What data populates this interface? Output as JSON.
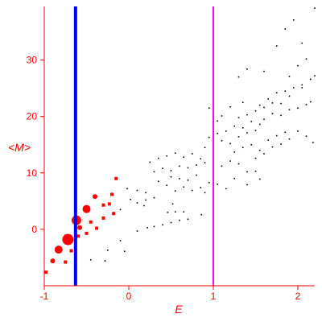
{
  "chart_data": {
    "type": "scatter",
    "xlabel": "E",
    "ylabel": "<M>",
    "xlim": [
      -1,
      2.2
    ],
    "ylim": [
      -10,
      39.5
    ],
    "x_ticks": [
      -1,
      0,
      1,
      2
    ],
    "y_ticks": [
      0,
      10,
      20,
      30
    ],
    "grid": false,
    "colors": {
      "axes": "#ff0000",
      "points": "#000000",
      "highlight": "#ff0000",
      "line_blue": "#0000ff",
      "line_magenta": "#ff00ff"
    },
    "vertical_lines": [
      {
        "x": -0.63,
        "color": "#0000ff"
      },
      {
        "x": 1.0,
        "color": "#ff00ff"
      }
    ],
    "series": [
      {
        "color": "#000000",
        "points": [
          [
            -0.45,
            -5.4
          ],
          [
            -0.28,
            -5.6
          ],
          [
            -0.05,
            -3.9
          ],
          [
            -0.25,
            -3.7
          ],
          [
            -0.1,
            -2.0
          ],
          [
            0.1,
            -0.3
          ],
          [
            0.22,
            0.3
          ],
          [
            0.3,
            0.5
          ],
          [
            0.4,
            0.8
          ],
          [
            0.5,
            1.2
          ],
          [
            0.6,
            1.6
          ],
          [
            0.7,
            1.8
          ],
          [
            0.86,
            2.6
          ],
          [
            0.46,
            3.0
          ],
          [
            0.55,
            3.1
          ],
          [
            0.65,
            3.1
          ],
          [
            0.52,
            4.5
          ],
          [
            0.18,
            4.2
          ],
          [
            -0.1,
            3.5
          ],
          [
            -0.02,
            7.2
          ],
          [
            0.1,
            6.9
          ],
          [
            0.2,
            6.5
          ],
          [
            0.3,
            5.6
          ],
          [
            0.2,
            5.2
          ],
          [
            0.1,
            4.7
          ],
          [
            0.02,
            5.3
          ],
          [
            0.35,
            8.5
          ],
          [
            0.45,
            7.8
          ],
          [
            0.55,
            6.8
          ],
          [
            0.65,
            7.5
          ],
          [
            0.75,
            6.9
          ],
          [
            0.85,
            7.4
          ],
          [
            0.9,
            6.5
          ],
          [
            0.3,
            10.2
          ],
          [
            0.4,
            10.8
          ],
          [
            0.5,
            10.4
          ],
          [
            0.6,
            11.2
          ],
          [
            0.7,
            10.9
          ],
          [
            0.8,
            11.4
          ],
          [
            0.9,
            11.8
          ],
          [
            0.25,
            11.9
          ],
          [
            0.35,
            12.6
          ],
          [
            0.45,
            13.0
          ],
          [
            0.55,
            13.5
          ],
          [
            0.65,
            12.8
          ],
          [
            0.75,
            13.4
          ],
          [
            0.85,
            12.5
          ],
          [
            0.5,
            9.3
          ],
          [
            0.6,
            9.0
          ],
          [
            0.7,
            8.7
          ],
          [
            0.8,
            9.6
          ],
          [
            0.95,
            8.3
          ],
          [
            1.05,
            8.0
          ],
          [
            1.15,
            7.2
          ],
          [
            0.9,
            14.5
          ],
          [
            1.0,
            15.0
          ],
          [
            1.1,
            15.7
          ],
          [
            1.2,
            15.2
          ],
          [
            1.3,
            16.4
          ],
          [
            1.4,
            17.1
          ],
          [
            1.5,
            17.5
          ],
          [
            0.95,
            16.3
          ],
          [
            1.05,
            17.0
          ],
          [
            1.15,
            17.4
          ],
          [
            1.25,
            18.3
          ],
          [
            1.35,
            18.0
          ],
          [
            1.45,
            19.1
          ],
          [
            1.55,
            18.6
          ],
          [
            1.0,
            12.6
          ],
          [
            1.1,
            11.2
          ],
          [
            1.2,
            12.1
          ],
          [
            1.3,
            11.6
          ],
          [
            1.4,
            10.2
          ],
          [
            1.5,
            12.6
          ],
          [
            1.6,
            13.4
          ],
          [
            1.25,
            13.7
          ],
          [
            1.35,
            14.5
          ],
          [
            1.45,
            15.0
          ],
          [
            1.55,
            14.0
          ],
          [
            1.65,
            15.8
          ],
          [
            1.75,
            16.6
          ],
          [
            1.85,
            17.2
          ],
          [
            1.6,
            19.5
          ],
          [
            1.7,
            20.5
          ],
          [
            1.8,
            20.2
          ],
          [
            1.9,
            21.2
          ],
          [
            2.0,
            21.5
          ],
          [
            2.1,
            22.1
          ],
          [
            2.15,
            22.6
          ],
          [
            1.3,
            19.8
          ],
          [
            1.4,
            20.3
          ],
          [
            1.5,
            21.0
          ],
          [
            1.6,
            21.6
          ],
          [
            1.7,
            22.4
          ],
          [
            1.8,
            22.3
          ],
          [
            1.9,
            23.6
          ],
          [
            1.55,
            22.0
          ],
          [
            1.65,
            23.1
          ],
          [
            1.75,
            24.2
          ],
          [
            1.85,
            24.5
          ],
          [
            1.95,
            25.1
          ],
          [
            2.05,
            25.6
          ],
          [
            2.15,
            26.6
          ],
          [
            1.2,
            21.7
          ],
          [
            1.35,
            22.5
          ],
          [
            1.1,
            20.1
          ],
          [
            1.05,
            19.2
          ],
          [
            2.0,
            17.4
          ],
          [
            2.1,
            16.5
          ],
          [
            2.18,
            15.4
          ],
          [
            1.7,
            14.6
          ],
          [
            1.8,
            15.1
          ],
          [
            1.9,
            16.0
          ],
          [
            1.5,
            10.3
          ],
          [
            1.55,
            8.9
          ],
          [
            1.25,
            9.0
          ],
          [
            1.4,
            7.9
          ],
          [
            1.4,
            28.4
          ],
          [
            1.6,
            28.0
          ],
          [
            1.75,
            32.5
          ],
          [
            1.85,
            35.5
          ],
          [
            1.95,
            37.1
          ],
          [
            2.05,
            33.0
          ],
          [
            2.2,
            39.2
          ],
          [
            2.0,
            29.0
          ],
          [
            2.1,
            30.2
          ],
          [
            2.2,
            27.2
          ],
          [
            1.3,
            27.0
          ],
          [
            1.9,
            27.1
          ],
          [
            2.05,
            25.1
          ],
          [
            0.95,
            21.5
          ]
        ]
      },
      {
        "color": "#ff0000",
        "points": [
          [
            -0.72,
            -1.8,
            7
          ],
          [
            -0.83,
            -3.6,
            5
          ],
          [
            -0.62,
            1.6,
            6
          ],
          [
            -0.5,
            3.6,
            5
          ],
          [
            -0.9,
            -5.6,
            3
          ],
          [
            -0.98,
            -7.6,
            2
          ],
          [
            -0.58,
            0.3,
            3
          ],
          [
            -0.4,
            5.8,
            3
          ],
          [
            -0.3,
            4.3,
            2
          ],
          [
            -0.2,
            6.2,
            2
          ],
          [
            -0.18,
            2.8,
            2
          ],
          [
            -0.3,
            2.0,
            2
          ],
          [
            -0.45,
            1.3,
            2
          ],
          [
            -0.6,
            -1.2,
            2
          ],
          [
            -0.75,
            -5.8,
            2
          ],
          [
            -0.68,
            -3.8,
            2
          ],
          [
            -0.5,
            -0.7,
            2
          ],
          [
            -0.38,
            0.2,
            2
          ],
          [
            -0.23,
            4.5,
            2
          ],
          [
            -0.15,
            9.0,
            2
          ]
        ]
      }
    ]
  }
}
